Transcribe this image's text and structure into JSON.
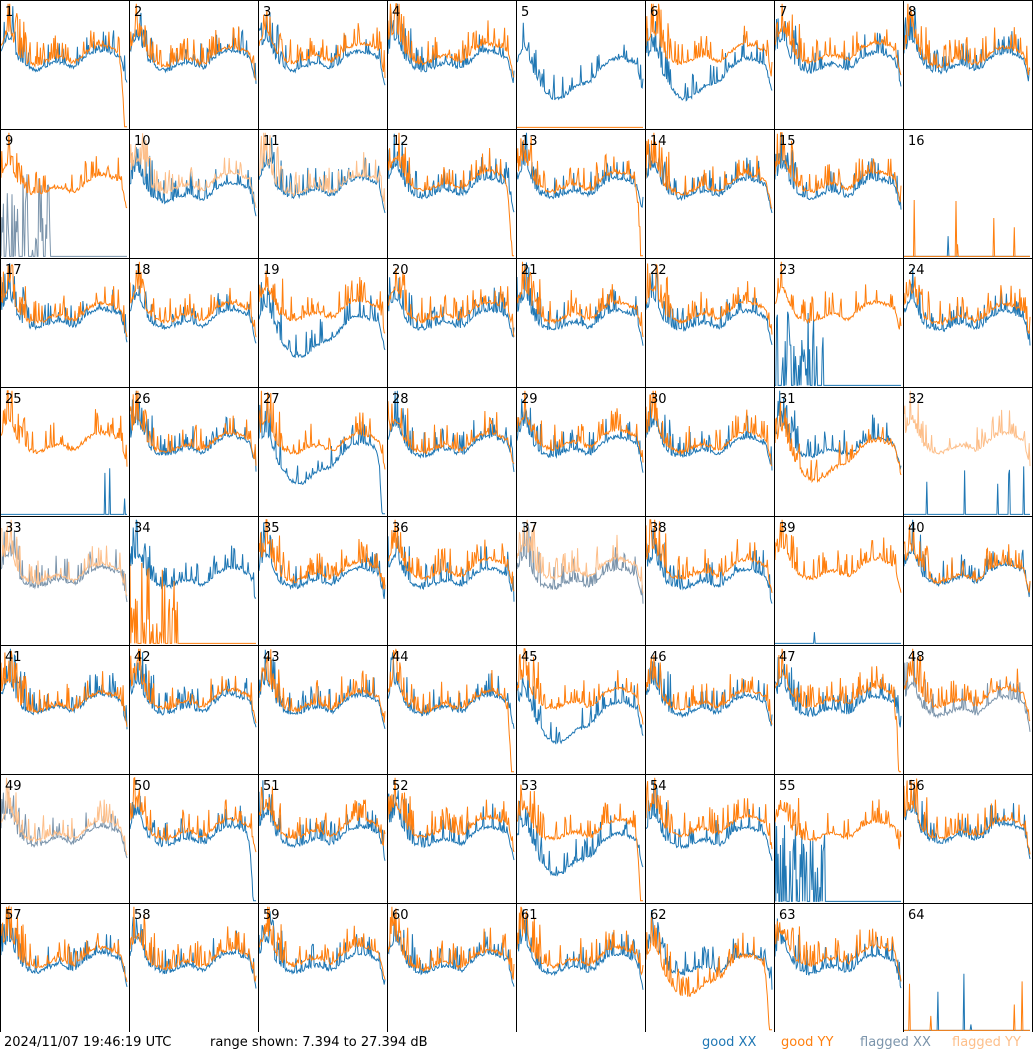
{
  "chart_data": {
    "type": "line",
    "panel_count": 64,
    "columns": 8,
    "rows": 8,
    "panel_labels": [
      "1",
      "2",
      "3",
      "4",
      "5",
      "6",
      "7",
      "8",
      "9",
      "10",
      "11",
      "12",
      "13",
      "14",
      "15",
      "16",
      "17",
      "18",
      "19",
      "20",
      "21",
      "22",
      "23",
      "24",
      "25",
      "26",
      "27",
      "28",
      "29",
      "30",
      "31",
      "32",
      "33",
      "34",
      "35",
      "36",
      "37",
      "38",
      "39",
      "40",
      "41",
      "42",
      "43",
      "44",
      "45",
      "46",
      "47",
      "48",
      "49",
      "50",
      "51",
      "52",
      "53",
      "54",
      "55",
      "56",
      "57",
      "58",
      "59",
      "60",
      "61",
      "62",
      "63",
      "64"
    ],
    "ylim_db": [
      7.394,
      27.394
    ],
    "grid": false,
    "legend_placement": "bottom-right",
    "series": [
      {
        "name": "good XX",
        "color": "#1f77b4"
      },
      {
        "name": "good YY",
        "color": "#ff7f0e"
      },
      {
        "name": "flagged XX",
        "color": "#7b94ab"
      },
      {
        "name": "flagged YY",
        "color": "#fdbf8a"
      }
    ],
    "panel_flags": {
      "flagged_xx": [
        9,
        33,
        37,
        48,
        49
      ],
      "flagged_yy": [
        10,
        11,
        32,
        33,
        37,
        49
      ],
      "xx_dropout": [
        9,
        16,
        23,
        25,
        32,
        39,
        55,
        64
      ],
      "yy_dropout": [
        5,
        16,
        34,
        64
      ],
      "yy_rolloff": [
        1,
        12,
        13,
        44,
        47,
        53,
        62
      ],
      "xx_rolloff": [
        27,
        50
      ],
      "xx_low": [
        5,
        6,
        19,
        27,
        45,
        53
      ],
      "yy_low": [
        31,
        62
      ]
    }
  },
  "footer": {
    "timestamp": "2024/11/07 19:46:19 UTC",
    "range_text": "range shown: 7.394 to 27.394 dB",
    "legend_good_xx": "good XX",
    "legend_good_yy": "good YY",
    "legend_flagged_xx": "flagged XX",
    "legend_flagged_yy": "flagged YY"
  }
}
